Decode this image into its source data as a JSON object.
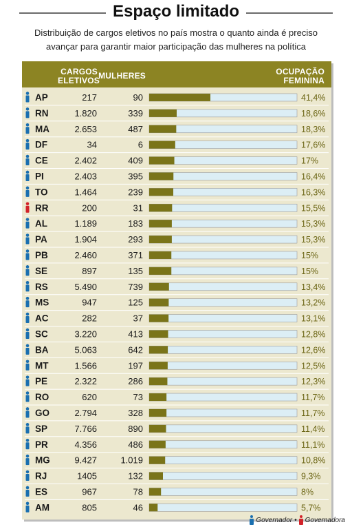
{
  "header": {
    "title": "Espaço limitado",
    "subtitle_line1": "Distribuição de cargos eletivos no país mostra o quanto ainda é preciso",
    "subtitle_line2": "avançar para garantir maior participação das mulheres na política"
  },
  "columns": {
    "cargos_line1": "CARGOS",
    "cargos_line2": "ELETIVOS",
    "mulheres": "MULHERES",
    "ocupacao_line1": "OCUPAÇÃO",
    "ocupacao_line2": "FEMININA"
  },
  "legend": {
    "governador": "Governador",
    "separator": "•",
    "governadora": "Governadora"
  },
  "colors": {
    "header_bg": "#8c8423",
    "row_bg": "#ece8cf",
    "bar_fill": "#7a7419",
    "bar_track": "#dceef5",
    "governador": "#1a6fb0",
    "governadora": "#d2232a",
    "percent_text": "#6b6515"
  },
  "chart_data": {
    "type": "bar",
    "title": "Espaço limitado",
    "xlim": [
      0,
      100
    ],
    "rows": [
      {
        "uf": "AP",
        "cargos": "217",
        "mulheres": "90",
        "pct": 41.4,
        "label": "41,4%",
        "gov": "governador"
      },
      {
        "uf": "RN",
        "cargos": "1.820",
        "mulheres": "339",
        "pct": 18.6,
        "label": "18,6%",
        "gov": "governador"
      },
      {
        "uf": "MA",
        "cargos": "2.653",
        "mulheres": "487",
        "pct": 18.3,
        "label": "18,3%",
        "gov": "governador"
      },
      {
        "uf": "DF",
        "cargos": "34",
        "mulheres": "6",
        "pct": 17.6,
        "label": "17,6%",
        "gov": "governador"
      },
      {
        "uf": "CE",
        "cargos": "2.402",
        "mulheres": "409",
        "pct": 17,
        "label": "17%",
        "gov": "governador"
      },
      {
        "uf": "PI",
        "cargos": "2.403",
        "mulheres": "395",
        "pct": 16.4,
        "label": "16,4%",
        "gov": "governador"
      },
      {
        "uf": "TO",
        "cargos": "1.464",
        "mulheres": "239",
        "pct": 16.3,
        "label": "16,3%",
        "gov": "governador"
      },
      {
        "uf": "RR",
        "cargos": "200",
        "mulheres": "31",
        "pct": 15.5,
        "label": "15,5%",
        "gov": "governadora"
      },
      {
        "uf": "AL",
        "cargos": "1.189",
        "mulheres": "183",
        "pct": 15.3,
        "label": "15,3%",
        "gov": "governador"
      },
      {
        "uf": "PA",
        "cargos": "1.904",
        "mulheres": "293",
        "pct": 15.3,
        "label": "15,3%",
        "gov": "governador"
      },
      {
        "uf": "PB",
        "cargos": "2.460",
        "mulheres": "371",
        "pct": 15,
        "label": "15%",
        "gov": "governador"
      },
      {
        "uf": "SE",
        "cargos": "897",
        "mulheres": "135",
        "pct": 15,
        "label": "15%",
        "gov": "governador"
      },
      {
        "uf": "RS",
        "cargos": "5.490",
        "mulheres": "739",
        "pct": 13.4,
        "label": "13,4%",
        "gov": "governador"
      },
      {
        "uf": "MS",
        "cargos": "947",
        "mulheres": "125",
        "pct": 13.2,
        "label": "13,2%",
        "gov": "governador"
      },
      {
        "uf": "AC",
        "cargos": "282",
        "mulheres": "37",
        "pct": 13.1,
        "label": "13,1%",
        "gov": "governador"
      },
      {
        "uf": "SC",
        "cargos": "3.220",
        "mulheres": "413",
        "pct": 12.8,
        "label": "12,8%",
        "gov": "governador"
      },
      {
        "uf": "BA",
        "cargos": "5.063",
        "mulheres": "642",
        "pct": 12.6,
        "label": "12,6%",
        "gov": "governador"
      },
      {
        "uf": "MT",
        "cargos": "1.566",
        "mulheres": "197",
        "pct": 12.5,
        "label": "12,5%",
        "gov": "governador"
      },
      {
        "uf": "PE",
        "cargos": "2.322",
        "mulheres": "286",
        "pct": 12.3,
        "label": "12,3%",
        "gov": "governador"
      },
      {
        "uf": "RO",
        "cargos": "620",
        "mulheres": "73",
        "pct": 11.7,
        "label": "11,7%",
        "gov": "governador"
      },
      {
        "uf": "GO",
        "cargos": "2.794",
        "mulheres": "328",
        "pct": 11.7,
        "label": "11,7%",
        "gov": "governador"
      },
      {
        "uf": "SP",
        "cargos": "7.766",
        "mulheres": "890",
        "pct": 11.4,
        "label": "11,4%",
        "gov": "governador"
      },
      {
        "uf": "PR",
        "cargos": "4.356",
        "mulheres": "486",
        "pct": 11.1,
        "label": "11,1%",
        "gov": "governador"
      },
      {
        "uf": "MG",
        "cargos": "9.427",
        "mulheres": "1.019",
        "pct": 10.8,
        "label": "10,8%",
        "gov": "governador"
      },
      {
        "uf": "RJ",
        "cargos": "1405",
        "mulheres": "132",
        "pct": 9.3,
        "label": "9,3%",
        "gov": "governador"
      },
      {
        "uf": "ES",
        "cargos": "967",
        "mulheres": "78",
        "pct": 8,
        "label": "8%",
        "gov": "governador"
      },
      {
        "uf": "AM",
        "cargos": "805",
        "mulheres": "46",
        "pct": 5.7,
        "label": "5,7%",
        "gov": "governador"
      }
    ]
  }
}
